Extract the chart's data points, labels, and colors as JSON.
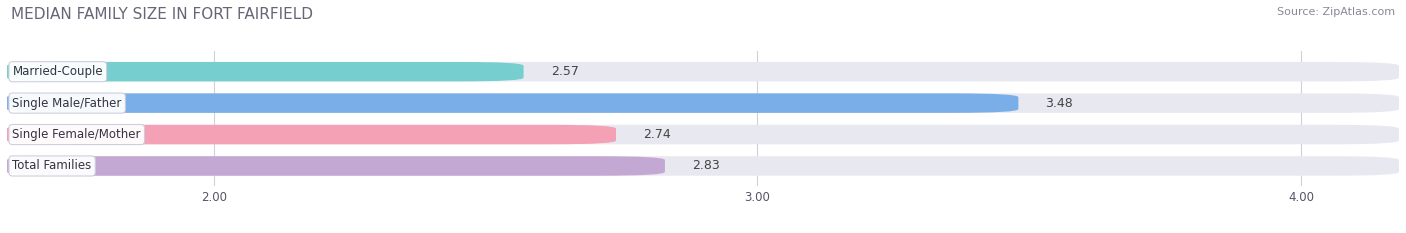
{
  "title": "MEDIAN FAMILY SIZE IN FORT FAIRFIELD",
  "source": "Source: ZipAtlas.com",
  "categories": [
    "Married-Couple",
    "Single Male/Father",
    "Single Female/Mother",
    "Total Families"
  ],
  "values": [
    2.57,
    3.48,
    2.74,
    2.83
  ],
  "bar_colors": [
    "#76cece",
    "#7aaee8",
    "#f4a0b5",
    "#c4a8d4"
  ],
  "bar_bg_color": "#e8e8f0",
  "xlim_min": 1.62,
  "xlim_max": 4.18,
  "xticks": [
    2.0,
    3.0,
    4.0
  ],
  "xtick_labels": [
    "2.00",
    "3.00",
    "4.00"
  ],
  "background_color": "#ffffff",
  "bar_height": 0.62,
  "label_fontsize": 8.5,
  "value_fontsize": 9,
  "title_fontsize": 11,
  "source_fontsize": 8,
  "grid_color": "#d0d0d8",
  "title_color": "#666677",
  "value_color": "#444444"
}
